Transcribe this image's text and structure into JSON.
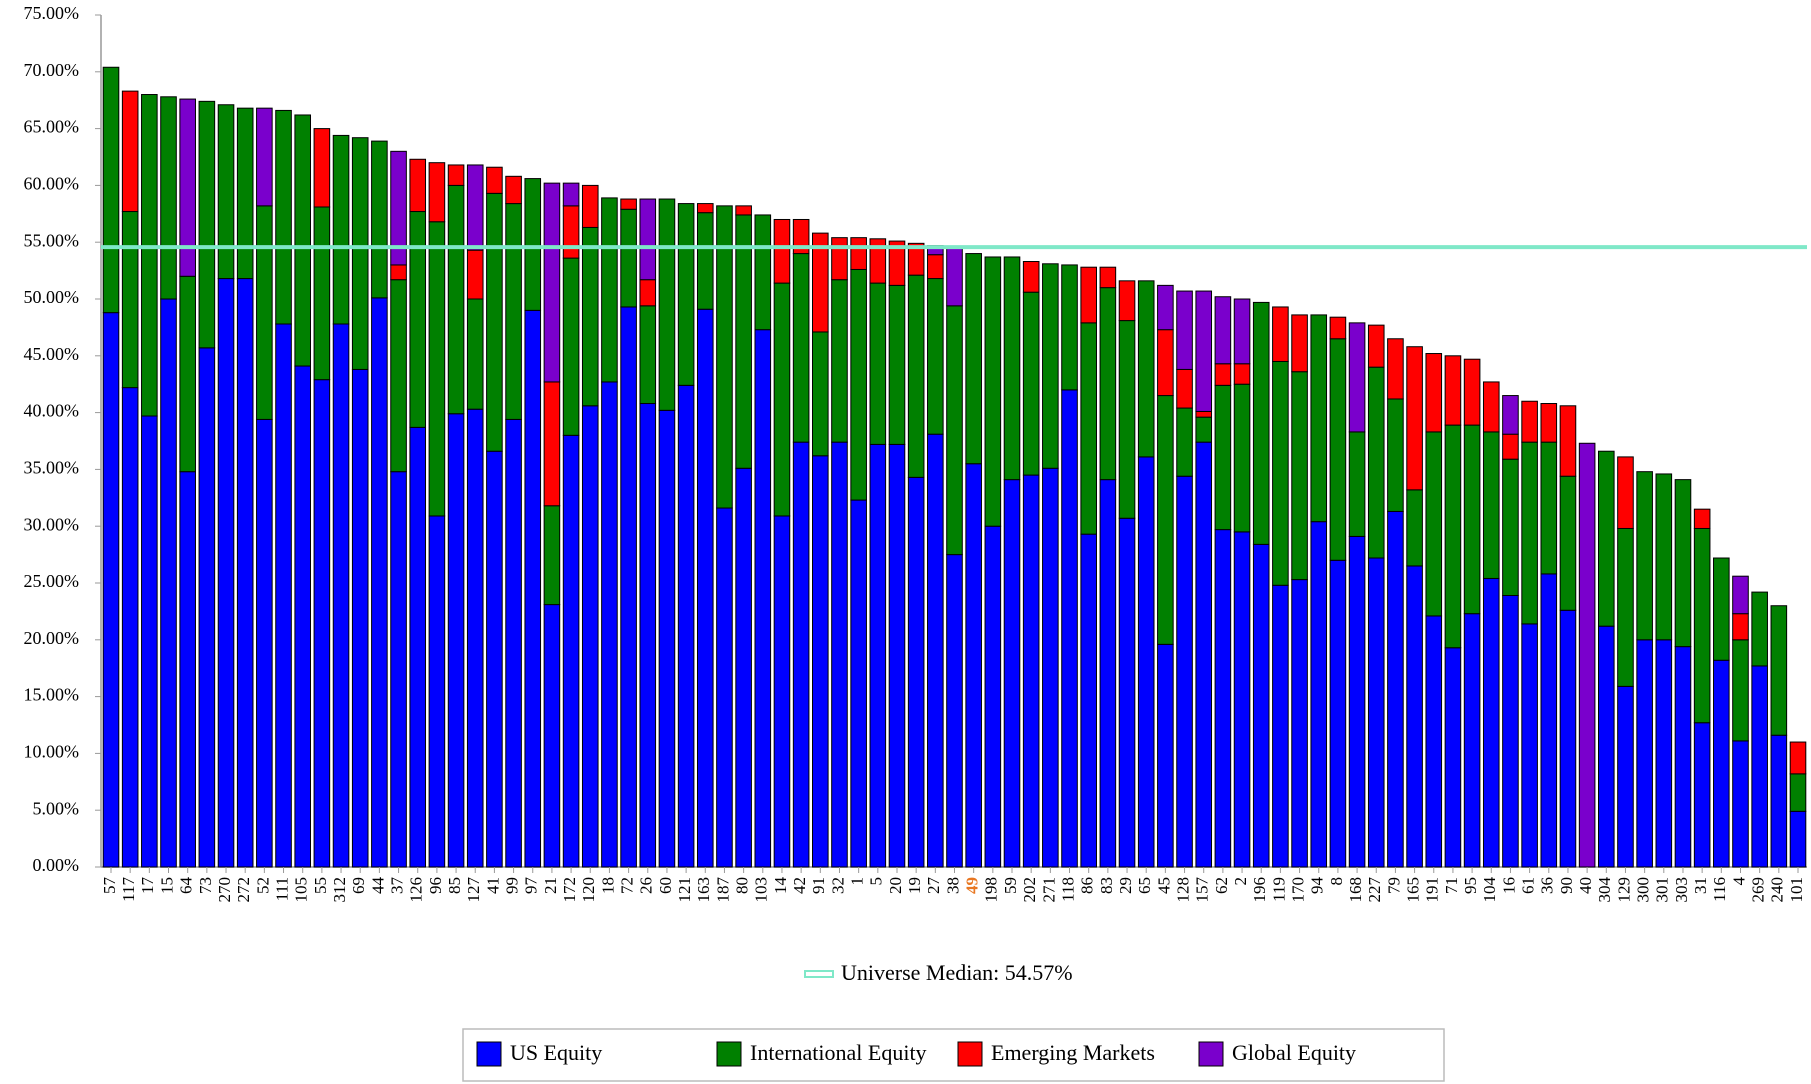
{
  "chart_data": {
    "type": "stacked_bar",
    "categories": [
      "57",
      "117",
      "17",
      "15",
      "64",
      "73",
      "270",
      "272",
      "52",
      "111",
      "105",
      "55",
      "312",
      "69",
      "44",
      "37",
      "126",
      "96",
      "85",
      "127",
      "41",
      "99",
      "97",
      "21",
      "172",
      "120",
      "18",
      "72",
      "26",
      "60",
      "121",
      "163",
      "187",
      "80",
      "103",
      "14",
      "42",
      "91",
      "32",
      "1",
      "5",
      "20",
      "19",
      "27",
      "38",
      "49",
      "198",
      "59",
      "202",
      "271",
      "118",
      "86",
      "83",
      "29",
      "65",
      "45",
      "128",
      "157",
      "62",
      "2",
      "196",
      "119",
      "170",
      "94",
      "8",
      "168",
      "227",
      "79",
      "165",
      "191",
      "71",
      "95",
      "104",
      "16",
      "61",
      "36",
      "90",
      "40",
      "304",
      "129",
      "300",
      "301",
      "303",
      "31",
      "116",
      "4",
      "269",
      "240",
      "101"
    ],
    "series": [
      {
        "name": "US Equity",
        "color": "#0000ff",
        "values": [
          48.8,
          42.2,
          39.7,
          50.0,
          34.8,
          45.7,
          51.8,
          51.8,
          39.4,
          47.8,
          44.1,
          42.9,
          47.8,
          43.8,
          50.1,
          34.8,
          38.7,
          30.9,
          39.9,
          40.3,
          36.6,
          39.4,
          49.0,
          23.1,
          38.0,
          40.6,
          42.7,
          49.3,
          40.8,
          40.2,
          42.4,
          49.1,
          31.6,
          35.1,
          47.3,
          30.9,
          37.4,
          36.2,
          37.4,
          32.3,
          37.2,
          37.2,
          34.3,
          38.1,
          27.5,
          35.5,
          30.0,
          34.1,
          34.5,
          35.1,
          42.0,
          29.3,
          34.1,
          30.7,
          36.1,
          19.6,
          34.4,
          37.4,
          29.7,
          29.5,
          28.4,
          24.8,
          25.3,
          30.4,
          27.0,
          29.1,
          27.2,
          31.3,
          26.5,
          22.1,
          19.3,
          22.3,
          25.4,
          23.9,
          21.4,
          25.8,
          22.6,
          0,
          21.2,
          15.9,
          20.0,
          20.0,
          19.4,
          12.7,
          18.2,
          11.1,
          17.7,
          11.6,
          4.9
        ]
      },
      {
        "name": "International Equity",
        "color": "#008000",
        "values": [
          21.6,
          15.5,
          28.3,
          17.8,
          17.2,
          21.7,
          15.3,
          15.0,
          18.8,
          18.8,
          22.1,
          15.2,
          16.6,
          20.4,
          13.8,
          16.9,
          19.0,
          25.9,
          20.1,
          9.7,
          22.7,
          19.0,
          11.6,
          8.7,
          15.6,
          15.7,
          16.2,
          8.6,
          8.6,
          18.6,
          16.0,
          8.5,
          26.6,
          22.3,
          10.1,
          20.5,
          16.6,
          10.9,
          14.3,
          20.3,
          14.2,
          14.0,
          17.8,
          13.7,
          21.9,
          18.5,
          23.7,
          19.6,
          16.1,
          18.0,
          11.0,
          18.6,
          16.9,
          17.4,
          15.5,
          21.9,
          6.0,
          2.2,
          12.7,
          13.0,
          21.3,
          19.7,
          18.3,
          18.2,
          19.5,
          9.2,
          16.8,
          9.9,
          6.7,
          16.2,
          19.6,
          16.6,
          12.9,
          12.0,
          16.0,
          11.6,
          11.8,
          0,
          15.4,
          13.9,
          14.8,
          14.6,
          14.7,
          17.1,
          9.0,
          8.9,
          6.5,
          11.4,
          3.3
        ]
      },
      {
        "name": "Emerging Markets",
        "color": "#ff0000",
        "values": [
          0,
          10.6,
          0,
          0,
          0,
          0,
          0,
          0,
          0,
          0,
          0,
          6.9,
          0,
          0,
          0,
          1.3,
          4.6,
          5.2,
          1.8,
          4.3,
          2.3,
          2.4,
          0,
          10.9,
          4.6,
          3.7,
          0,
          0.9,
          2.3,
          0,
          0,
          0.8,
          0,
          0.8,
          0,
          5.6,
          3.0,
          8.7,
          3.7,
          2.8,
          3.9,
          3.9,
          2.8,
          2.1,
          0,
          0,
          0,
          0,
          2.7,
          0,
          0,
          4.9,
          1.8,
          3.5,
          0,
          5.8,
          3.4,
          0.5,
          1.9,
          1.8,
          0,
          4.8,
          5.0,
          0,
          1.9,
          0,
          3.7,
          5.3,
          12.6,
          6.9,
          6.1,
          5.8,
          4.4,
          2.2,
          3.6,
          3.4,
          6.2,
          0,
          0,
          6.3,
          0,
          0,
          0,
          1.7,
          0,
          2.3,
          0,
          0,
          2.8
        ]
      },
      {
        "name": "Global Equity",
        "color": "#7a00cc",
        "values": [
          0,
          0,
          0,
          0,
          15.6,
          0,
          0,
          0,
          8.6,
          0,
          0,
          0,
          0,
          0,
          0,
          10.0,
          0,
          0,
          0,
          7.5,
          0,
          0,
          0,
          17.5,
          2.0,
          0,
          0,
          0,
          7.1,
          0,
          0,
          0,
          0,
          0,
          0,
          0,
          0,
          0,
          0,
          0,
          0,
          0,
          0,
          0.8,
          5.1,
          0,
          0,
          0,
          0,
          0,
          0,
          0,
          0,
          0,
          0,
          3.9,
          6.9,
          10.6,
          5.9,
          5.7,
          0,
          0,
          0,
          0,
          0,
          9.6,
          0,
          0,
          0,
          0,
          0,
          0,
          0,
          3.4,
          0,
          0,
          0,
          37.3,
          0,
          0,
          0,
          0,
          0,
          0,
          0,
          3.3,
          0,
          0,
          0
        ]
      }
    ],
    "ylim": [
      0,
      75
    ],
    "yticks": [
      {
        "value": 0,
        "label": "0.00%"
      },
      {
        "value": 5,
        "label": "5.00%"
      },
      {
        "value": 10,
        "label": "10.00%"
      },
      {
        "value": 15,
        "label": "15.00%"
      },
      {
        "value": 20,
        "label": "20.00%"
      },
      {
        "value": 25,
        "label": "25.00%"
      },
      {
        "value": 30,
        "label": "30.00%"
      },
      {
        "value": 35,
        "label": "35.00%"
      },
      {
        "value": 40,
        "label": "40.00%"
      },
      {
        "value": 45,
        "label": "45.00%"
      },
      {
        "value": 50,
        "label": "50.00%"
      },
      {
        "value": 55,
        "label": "55.00%"
      },
      {
        "value": 60,
        "label": "60.00%"
      },
      {
        "value": 65,
        "label": "65.00%"
      },
      {
        "value": 70,
        "label": "70.00%"
      },
      {
        "value": 75,
        "label": "75.00%"
      }
    ],
    "median": {
      "value": 54.57,
      "label": "Universe Median: 54.57%",
      "color": "#7fe8c8"
    },
    "highlight": {
      "category": "49",
      "color": "#e87722"
    },
    "legend": "bottom"
  }
}
